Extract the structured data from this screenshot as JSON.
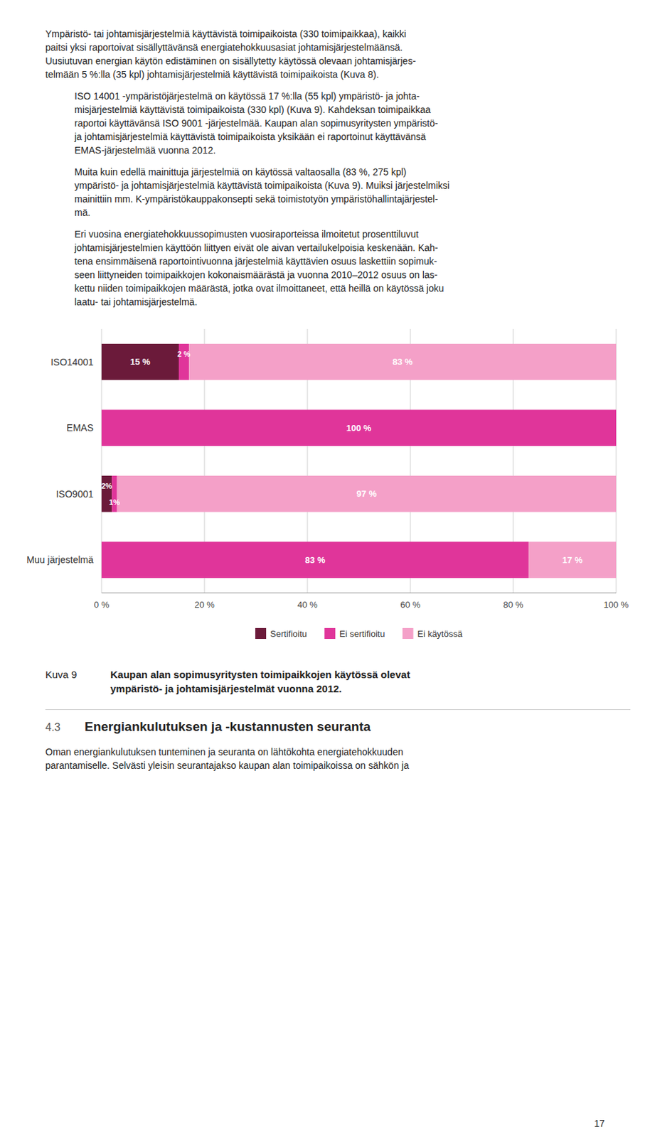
{
  "chart_data": {
    "type": "bar",
    "orientation": "horizontal",
    "stacked": true,
    "title": "Kaupan alan sopimusyritysten toimipaikkojen käytössä olevat\nympäristö- ja johtamisjärjestelmät vuonna 2012.",
    "categories": [
      "Muu järjestelmä",
      "ISO9001",
      "EMAS",
      "ISO14001"
    ],
    "series": [
      {
        "name": "Sertifioitu",
        "color": "#6b1a3a",
        "values": [
          0,
          2,
          0,
          15
        ],
        "value_labels": [
          null,
          "2%",
          null,
          "15 %"
        ]
      },
      {
        "name": "Ei sertifioitu",
        "color": "#e0359a",
        "values": [
          83,
          1,
          100,
          2
        ],
        "value_labels": [
          "83 %",
          "1%",
          "100 %",
          "2 %"
        ]
      },
      {
        "name": "Ei käytössä",
        "color": "#f4a0c8",
        "values": [
          17,
          97,
          0,
          83
        ],
        "value_labels": [
          "17 %",
          "97 %",
          null,
          "83 %"
        ]
      }
    ],
    "xlim": [
      0,
      100
    ],
    "xticks": [
      {
        "value": 0,
        "label": "0 %"
      },
      {
        "value": 20,
        "label": "20 %"
      },
      {
        "value": 40,
        "label": "40 %"
      },
      {
        "value": 60,
        "label": "60 %"
      },
      {
        "value": 80,
        "label": "80 %"
      },
      {
        "value": 100,
        "label": "100 %"
      }
    ],
    "grid": true,
    "legend": "bottom",
    "data_labels": true
  },
  "paragraphs": [
    "Ympäristö- tai johtamisjärjestelmiä käyttävistä toimipaikoista (330 toimipaikkaa), kaikki\npaitsi yksi raportoivat sisällyttävänsä energiatehokkuusasiat johtamisjärjestelmäänsä.\nUusiutuvan energian käytön edistäminen on sisällytetty käytössä olevaan johtamisjärjes-\ntelmään 5 %:lla (35 kpl) johtamisjärjestelmiä käyttävistä toimipaikoista (Kuva 8).",
    "ISO 14001 -ympäristöjärjestelmä on käytössä 17 %:lla (55 kpl) ympäristö- ja johta-\nmisjärjestelmiä käyttävistä toimipaikoista (330 kpl) (Kuva 9). Kahdeksan toimipaikkaa\nraportoi käyttävänsä ISO 9001 -järjestelmää. Kaupan alan sopimusyritysten ympäristö-\nja johtamisjärjestelmiä käyttävistä toimipaikoista yksikään ei raportoinut käyttävänsä\nEMAS-järjestelmää vuonna 2012.",
    "Muita kuin edellä mainittuja järjestelmiä on käytössä valtaosalla (83 %, 275 kpl)\nympäristö- ja johtamisjärjestelmiä käyttävistä toimipaikoista (Kuva 9). Muiksi järjestelmiksi\nmainittiin mm. K-ympäristökauppakonsepti sekä toimistotyön ympäristöhallintajärjestel-\nmä.",
    "Eri vuosina energiatehokkuussopimusten vuosiraporteissa ilmoitetut prosenttiluvut\njohtamisjärjestelmien käyttöön liittyen eivät ole aivan vertailukelpoisia keskenään. Kah-\ntena ensimmäisenä raportointivuonna järjestelmiä käyttävien osuus laskettiin sopimuk-\nseen liittyneiden toimipaikkojen kokonaismäärästä ja vuonna 2010–2012 osuus on las-\nkettu niiden toimipaikkojen määrästä, jotka ovat ilmoittaneet, että heillä on käytössä joku\nlaatu- tai johtamisjärjestelmä."
  ],
  "figure_label": "Kuva 9",
  "section_number": "4.3",
  "section_title": "Energiankulutuksen ja -kustannusten seuranta",
  "section_paragraph": "Oman energiankulutuksen tunteminen ja seuranta on lähtökohta energiatehokkuuden\nparantamiselle. Selvästi yleisin seurantajakso kaupan alan toimipaikoissa on sähkön ja",
  "page_number": "17"
}
